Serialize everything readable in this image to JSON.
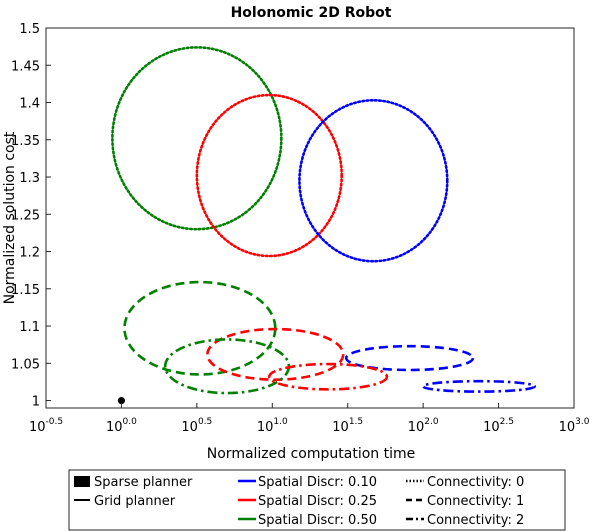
{
  "chart_data": {
    "type": "scatter",
    "title": "Holonomic 2D Robot",
    "xlabel": "Normalized computation time",
    "ylabel": "Normalized solution cost",
    "xscale": "log10",
    "xlim": [
      -0.5,
      3.0
    ],
    "ylim": [
      0.99,
      1.5
    ],
    "grid": false,
    "x_ticks": [
      {
        "base": "10",
        "exp": "-0.5",
        "value": -0.5
      },
      {
        "base": "10",
        "exp": "0.0",
        "value": 0.0
      },
      {
        "base": "10",
        "exp": "0.5",
        "value": 0.5
      },
      {
        "base": "10",
        "exp": "1.0",
        "value": 1.0
      },
      {
        "base": "10",
        "exp": "1.5",
        "value": 1.5
      },
      {
        "base": "10",
        "exp": "2.0",
        "value": 2.0
      },
      {
        "base": "10",
        "exp": "2.5",
        "value": 2.5
      },
      {
        "base": "10",
        "exp": "3.0",
        "value": 3.0
      }
    ],
    "y_ticks": [
      "1",
      "1.05",
      "1.1",
      "1.15",
      "1.2",
      "1.25",
      "1.3",
      "1.35",
      "1.4",
      "1.45",
      "1.5"
    ],
    "y_tick_values": [
      1.0,
      1.05,
      1.1,
      1.15,
      1.2,
      1.25,
      1.3,
      1.35,
      1.4,
      1.45,
      1.5
    ],
    "colors": {
      "d010": "#0000ff",
      "d025": "#ff0000",
      "d050": "#008000",
      "sparse": "#000000"
    },
    "sparse_point": {
      "log10_x": 0.0,
      "y": 1.0
    },
    "ellipses": [
      {
        "discr": "0.50",
        "connectivity": 0,
        "style": "dotted",
        "cx": 0.5,
        "cy": 1.352,
        "rx": 0.56,
        "ry": 0.122
      },
      {
        "discr": "0.25",
        "connectivity": 0,
        "style": "dotted",
        "cx": 0.98,
        "cy": 1.302,
        "rx": 0.48,
        "ry": 0.108
      },
      {
        "discr": "0.10",
        "connectivity": 0,
        "style": "dotted",
        "cx": 1.67,
        "cy": 1.295,
        "rx": 0.49,
        "ry": 0.108
      },
      {
        "discr": "0.50",
        "connectivity": 1,
        "style": "dashed",
        "cx": 0.52,
        "cy": 1.097,
        "rx": 0.5,
        "ry": 0.062
      },
      {
        "discr": "0.25",
        "connectivity": 1,
        "style": "dashed",
        "cx": 1.02,
        "cy": 1.062,
        "rx": 0.45,
        "ry": 0.034
      },
      {
        "discr": "0.10",
        "connectivity": 1,
        "style": "dashed",
        "cx": 1.91,
        "cy": 1.057,
        "rx": 0.42,
        "ry": 0.016
      },
      {
        "discr": "0.50",
        "connectivity": 2,
        "style": "dashdot",
        "cx": 0.7,
        "cy": 1.046,
        "rx": 0.41,
        "ry": 0.036
      },
      {
        "discr": "0.25",
        "connectivity": 2,
        "style": "dashdot",
        "cx": 1.37,
        "cy": 1.032,
        "rx": 0.39,
        "ry": 0.017
      },
      {
        "discr": "0.10",
        "connectivity": 2,
        "style": "dashdot",
        "cx": 2.37,
        "cy": 1.019,
        "rx": 0.37,
        "ry": 0.007
      }
    ]
  },
  "legend": {
    "col1": [
      "Sparse planner",
      "Grid planner"
    ],
    "col2": [
      "Spatial Discr: 0.10",
      "Spatial Discr: 0.25",
      "Spatial Discr: 0.50"
    ],
    "col3": [
      "Connectivity: 0",
      "Connectivity: 1",
      "Connectivity: 2"
    ]
  }
}
